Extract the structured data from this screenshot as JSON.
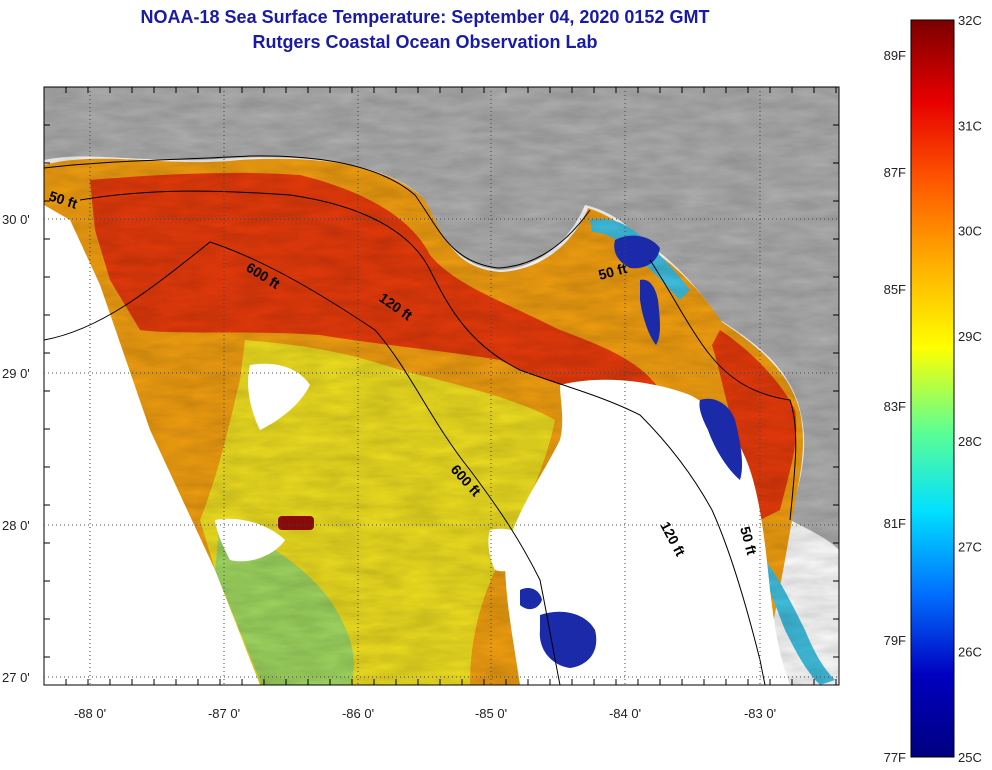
{
  "header": {
    "title": "NOAA-18 Sea Surface Temperature:  September 04, 2020 0152 GMT",
    "subtitle": "Rutgers Coastal Ocean Observation Lab"
  },
  "map": {
    "latitude_labels": [
      "30 0'",
      "29 0'",
      "28 0'",
      "27 0'"
    ],
    "longitude_labels": [
      "-88 0'",
      "-87 0'",
      "-86 0'",
      "-85 0'",
      "-84 0'",
      "-83 0'"
    ],
    "contour_labels": {
      "c50_west": "50 ft",
      "c600_north": "600 ft",
      "c120_north": "120 ft",
      "c50_bigbend": "50 ft",
      "c600_south": "600 ft",
      "c120_south": "120 ft",
      "c50_south": "50 ft"
    },
    "colors": {
      "land": "#b0b0b0",
      "no_data": "#ffffff",
      "hot": "#e83a0a",
      "warm": "#f4a010",
      "mid": "#f0e020",
      "cool": "#40c0e0",
      "cold": "#1a2aa8"
    }
  },
  "colorbar": {
    "celsius_labels": [
      "32C",
      "31C",
      "30C",
      "29C",
      "28C",
      "27C",
      "26C",
      "25C"
    ],
    "fahrenheit_labels": [
      "89F",
      "87F",
      "85F",
      "83F",
      "81F",
      "79F",
      "77F"
    ],
    "gradient_colors": [
      "#7a0000",
      "#e80000",
      "#ff5a00",
      "#ffb000",
      "#ffff00",
      "#60ff90",
      "#00e0ff",
      "#0070ff",
      "#0000c0",
      "#000080"
    ]
  }
}
